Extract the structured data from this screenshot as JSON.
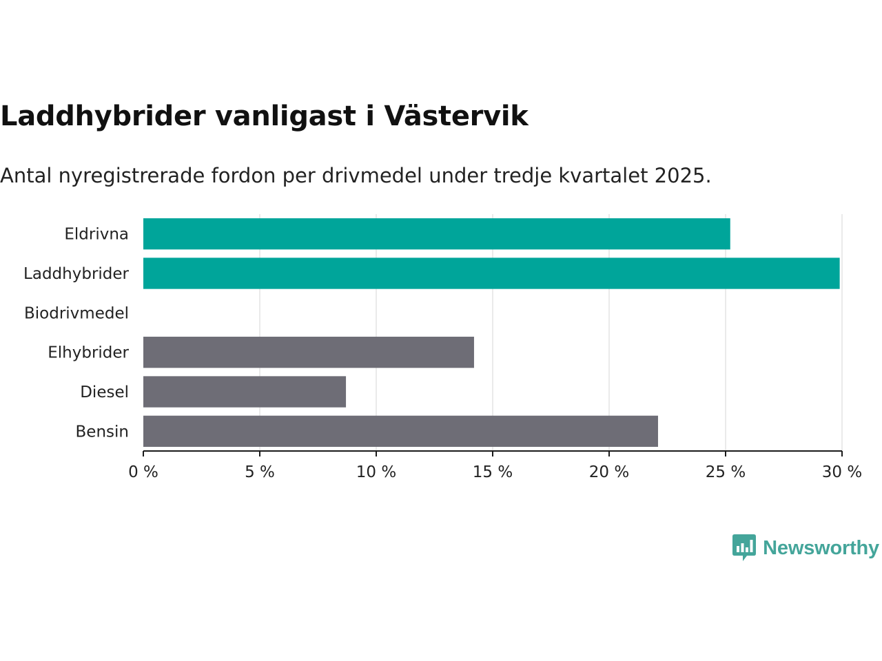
{
  "chart_data": {
    "type": "bar",
    "orientation": "horizontal",
    "title": "Laddhybrider vanligast i Västervik",
    "subtitle": "Antal nyregistrerade fordon per drivmedel under tredje kvartalet 2025.",
    "categories": [
      "Eldrivna",
      "Laddhybrider",
      "Biodrivmedel",
      "Elhybrider",
      "Diesel",
      "Bensin"
    ],
    "values": [
      25.2,
      29.9,
      0,
      14.2,
      8.7,
      22.1
    ],
    "highlighted": [
      true,
      true,
      false,
      false,
      false,
      false
    ],
    "xlabel": "",
    "ylabel": "",
    "xlim": [
      0,
      30
    ],
    "x_ticks": [
      0,
      5,
      10,
      15,
      20,
      25,
      30
    ],
    "x_tick_suffix": " %",
    "grid": true,
    "colors": {
      "highlight": "#00a59a",
      "default": "#6e6d76",
      "grid": "#dcdcdc",
      "axis": "#1a1a1a"
    }
  },
  "brand": {
    "name": "Newsworthy",
    "icon": "newsworthy-logo-icon"
  }
}
